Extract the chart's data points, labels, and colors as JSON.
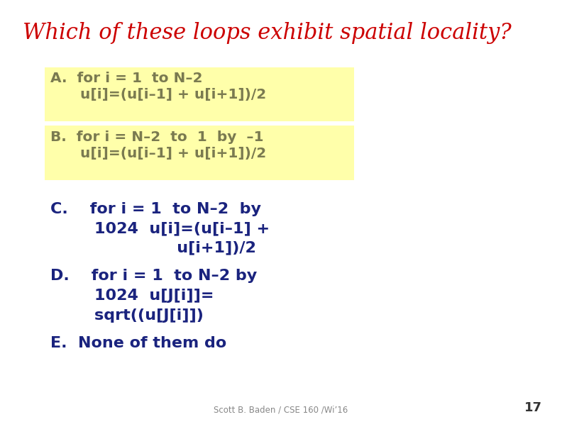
{
  "title": "Which of these loops exhibit spatial locality?",
  "title_color": "#cc0000",
  "title_fontsize": 22,
  "background_color": "#ffffff",
  "highlight_color": "#ffffaa",
  "dark_olive": "#7a7a50",
  "blue_color": "#1a237e",
  "footer": "Scott B. Baden / CSE 160 /Wi’16",
  "page_num": "17",
  "A_lines": [
    "A.  for i = 1  to N–2",
    "      u[i]=(u[i–1] + u[i+1])/2"
  ],
  "B_lines": [
    "B.  for i = N–2  to  1  by  –1",
    "      u[i]=(u[i–1] + u[i+1])/2"
  ],
  "C_lines": [
    "C.    for i = 1  to N–2  by",
    "        1024  u[i]=(u[i–1] +",
    "                       u[i+1])/2"
  ],
  "D_lines": [
    "D.    for i = 1  to N–2 by",
    "        1024  u[J[i]]=",
    "        sqrt((u[J[i]])"
  ],
  "E_line": "E.  None of them do"
}
